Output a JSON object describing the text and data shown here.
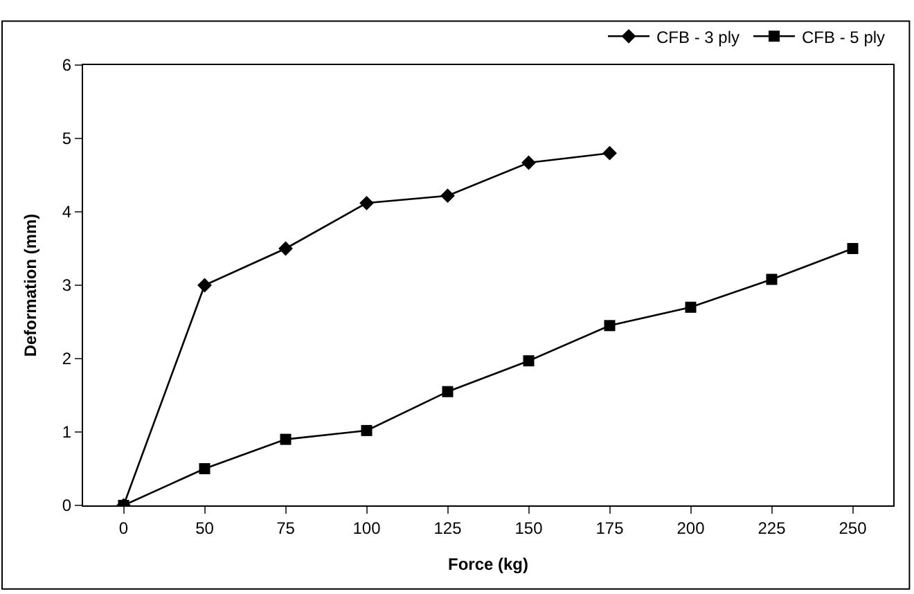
{
  "chart_data": {
    "type": "line",
    "xlabel": "Force (kg)",
    "ylabel": "Deformation (mm)",
    "categories": [
      "0",
      "50",
      "75",
      "100",
      "125",
      "150",
      "175",
      "200",
      "225",
      "250"
    ],
    "series": [
      {
        "name": "CFB - 3 ply",
        "color": "#000000",
        "marker": "diamond",
        "values": [
          0,
          3.0,
          3.5,
          4.12,
          4.22,
          4.67,
          4.8,
          null,
          null,
          null
        ]
      },
      {
        "name": "CFB - 5 ply",
        "color": "#000000",
        "marker": "square",
        "values": [
          0,
          0.5,
          0.9,
          1.02,
          1.55,
          1.97,
          2.45,
          2.7,
          3.08,
          3.5
        ]
      }
    ],
    "ylim": [
      0,
      6
    ],
    "yticks": [
      0,
      1,
      2,
      3,
      4,
      5,
      6
    ],
    "grid": false,
    "legend": "top right",
    "line_style": "solid"
  }
}
